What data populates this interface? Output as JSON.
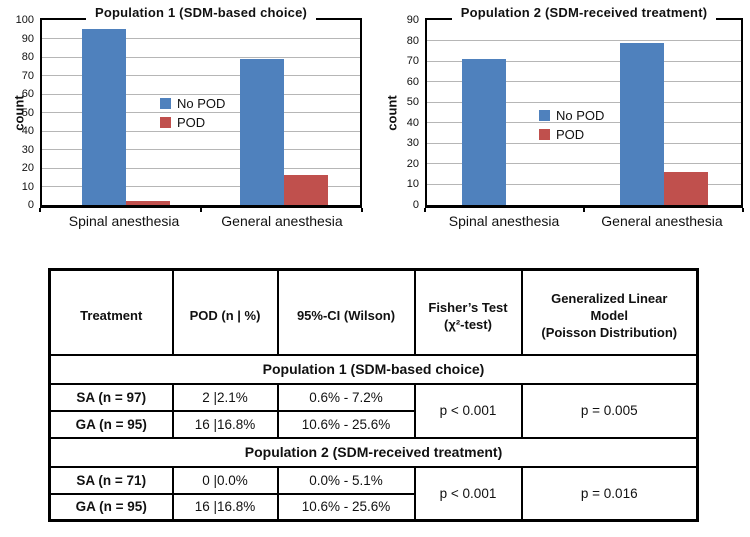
{
  "figure": {
    "background": "#ffffff",
    "grid_color": "#b6b6b6",
    "border_color": "#000000"
  },
  "chart_data": [
    {
      "type": "bar",
      "title": "Population 1 (SDM-based choice)",
      "xlabel": "",
      "ylabel": "count",
      "categories": [
        "Spinal anesthesia",
        "General anesthesia"
      ],
      "series": [
        {
          "name": "No POD",
          "color": "#4F81BD",
          "values": [
            95,
            79
          ]
        },
        {
          "name": "POD",
          "color": "#C0504D",
          "values": [
            2,
            16
          ]
        }
      ],
      "ylim": [
        0,
        100
      ],
      "yticks": [
        100,
        90,
        80,
        70,
        60,
        50,
        40,
        30,
        20,
        10,
        0
      ],
      "grid": true,
      "legend_position": "center"
    },
    {
      "type": "bar",
      "title": "Population 2 (SDM-received treatment)",
      "xlabel": "",
      "ylabel": "count",
      "categories": [
        "Spinal anesthesia",
        "General anesthesia"
      ],
      "series": [
        {
          "name": "No POD",
          "color": "#4F81BD",
          "values": [
            71,
            79
          ]
        },
        {
          "name": "POD",
          "color": "#C0504D",
          "values": [
            0,
            16
          ]
        }
      ],
      "ylim": [
        0,
        90
      ],
      "yticks": [
        90,
        80,
        70,
        60,
        50,
        40,
        30,
        20,
        10,
        0
      ],
      "grid": true,
      "legend_position": "center"
    },
    {
      "type": "table",
      "columns": [
        "Treatment",
        "POD (n | %)",
        "95%-CI (Wilson)",
        "Fisher’s Test\n(χ²-test)",
        "Generalized Linear\nModel\n(Poisson Distribution)"
      ],
      "sections": [
        {
          "header": "Population 1 (SDM-based choice)",
          "rows": [
            {
              "treatment": "SA (n = 97)",
              "pod": "2 |2.1%",
              "ci": "0.6% - 7.2%"
            },
            {
              "treatment": "GA (n = 95)",
              "pod": "16 |16.8%",
              "ci": "10.6% - 25.6%"
            }
          ],
          "fisher_p": "p < 0.001",
          "glm_p": "p = 0.005"
        },
        {
          "header": "Population 2 (SDM-received treatment)",
          "rows": [
            {
              "treatment": "SA (n = 71)",
              "pod": "0 |0.0%",
              "ci": "0.0% - 5.1%"
            },
            {
              "treatment": "GA (n = 95)",
              "pod": "16 |16.8%",
              "ci": "10.6% - 25.6%"
            }
          ],
          "fisher_p": "p < 0.001",
          "glm_p": "p = 0.016"
        }
      ]
    }
  ]
}
